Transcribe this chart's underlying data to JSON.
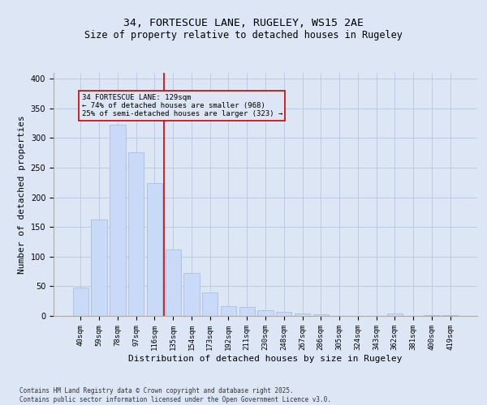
{
  "title1": "34, FORTESCUE LANE, RUGELEY, WS15 2AE",
  "title2": "Size of property relative to detached houses in Rugeley",
  "xlabel": "Distribution of detached houses by size in Rugeley",
  "ylabel": "Number of detached properties",
  "categories": [
    "40sqm",
    "59sqm",
    "78sqm",
    "97sqm",
    "116sqm",
    "135sqm",
    "154sqm",
    "173sqm",
    "192sqm",
    "211sqm",
    "230sqm",
    "248sqm",
    "267sqm",
    "286sqm",
    "305sqm",
    "324sqm",
    "343sqm",
    "362sqm",
    "381sqm",
    "400sqm",
    "419sqm"
  ],
  "values": [
    48,
    163,
    323,
    276,
    224,
    112,
    72,
    40,
    16,
    15,
    9,
    7,
    4,
    3,
    0,
    0,
    0,
    4,
    0,
    2,
    2
  ],
  "bar_color": "#c9daf8",
  "bar_edge_color": "#a4b8d4",
  "grid_color": "#b8c8e0",
  "background_color": "#dce6f5",
  "vline_x": 4.5,
  "vline_color": "#cc0000",
  "annotation_text": "34 FORTESCUE LANE: 129sqm\n← 74% of detached houses are smaller (968)\n25% of semi-detached houses are larger (323) →",
  "annotation_box_color": "#cc0000",
  "ylim": [
    0,
    410
  ],
  "yticks": [
    0,
    50,
    100,
    150,
    200,
    250,
    300,
    350,
    400
  ],
  "footer": "Contains HM Land Registry data © Crown copyright and database right 2025.\nContains public sector information licensed under the Open Government Licence v3.0.",
  "title_fontsize": 9.5,
  "subtitle_fontsize": 8.5,
  "tick_fontsize": 6.5,
  "label_fontsize": 8,
  "footer_fontsize": 5.5
}
